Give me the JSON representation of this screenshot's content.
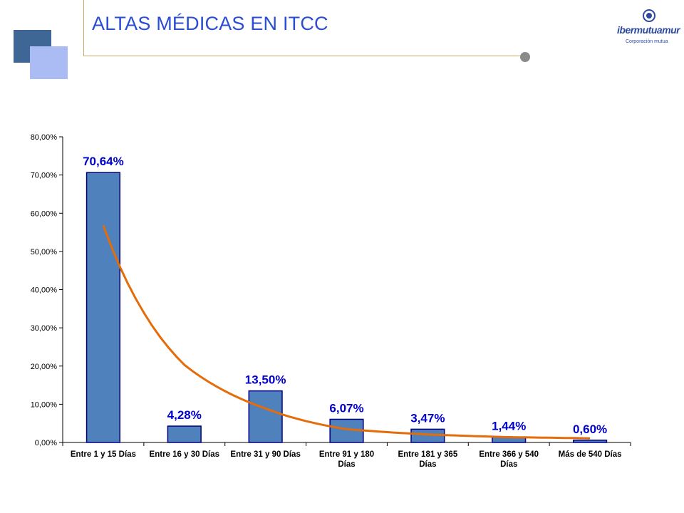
{
  "page": {
    "title": "ALTAS MÉDICAS EN ITCC",
    "logo": {
      "name": "ibermutuamur",
      "tagline": "Corporación mutua"
    }
  },
  "colors": {
    "title": "#2b4dd2",
    "bar_fill": "#4f81bd",
    "bar_stroke": "#000080",
    "trend": "#e46c0a",
    "data_label": "#0000cc"
  },
  "chart_data": {
    "type": "bar",
    "title": "",
    "xlabel": "",
    "ylabel": "",
    "categories": [
      [
        "Entre 1 y 15 Días"
      ],
      [
        "Entre 16 y 30 Días"
      ],
      [
        "Entre 31 y 90 Días"
      ],
      [
        "Entre 91 y 180",
        "Días"
      ],
      [
        "Entre 181 y 365",
        "Días"
      ],
      [
        "Entre 366 y 540",
        "Días"
      ],
      [
        "Más de 540 Días"
      ]
    ],
    "values": [
      70.64,
      4.28,
      13.5,
      6.07,
      3.47,
      1.44,
      0.6
    ],
    "data_labels": [
      "70,64%",
      "4,28%",
      "13,50%",
      "6,07%",
      "3,47%",
      "1,44%",
      "0,60%"
    ],
    "ylim": [
      0,
      80
    ],
    "y_ticks": [
      "0,00%",
      "10,00%",
      "20,00%",
      "30,00%",
      "40,00%",
      "50,00%",
      "60,00%",
      "70,00%",
      "80,00%"
    ],
    "trendline": {
      "type": "power",
      "values": [
        56.8,
        20.3,
        8.9,
        3.5,
        2.1,
        1.4,
        1.1
      ]
    },
    "grid": false,
    "legend": "none"
  }
}
